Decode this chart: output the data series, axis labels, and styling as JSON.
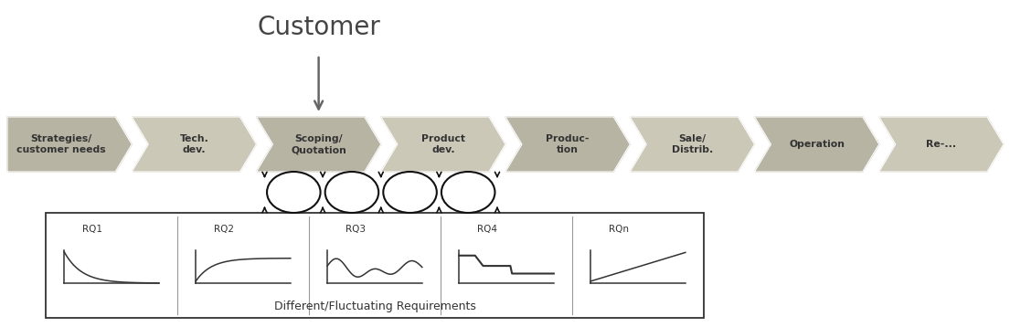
{
  "bg_color": "#ffffff",
  "stage_colors": [
    "#b8b4a4",
    "#ccc8b8",
    "#b8b4a4",
    "#ccc8b8",
    "#b8b4a4",
    "#ccc8b8",
    "#b8b4a4",
    "#ccc8b8"
  ],
  "arrow_text_color": "#333333",
  "stages": [
    "Strategies/\ncustomer needs",
    "Tech.\ndev.",
    "Scoping/\nQuotation",
    "Product\ndev.",
    "Produc-\ntion",
    "Sale/\nDistrib.",
    "Operation",
    "Re-..."
  ],
  "customer_label": "Customer",
  "box_label": "Different/Fluctuating Requirements",
  "rq_labels": [
    "RQ1",
    "RQ2",
    "RQ3",
    "RQ4",
    "RQn"
  ],
  "loop_color": "#111111",
  "figsize": [
    11.05,
    3.58
  ],
  "dpi": 100
}
